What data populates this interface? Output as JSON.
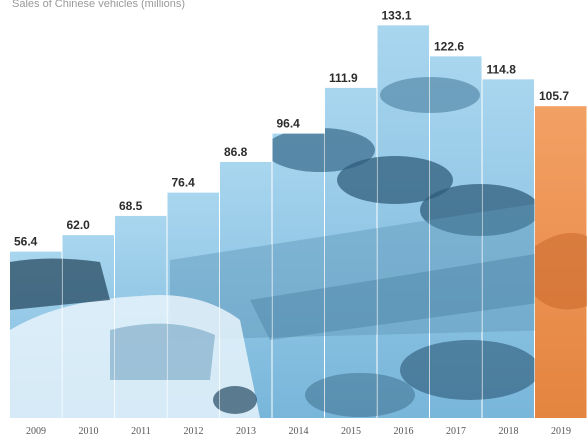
{
  "header": {
    "subtitle": "Sales of Chinese vehicles (millions)"
  },
  "colors": {
    "bar_blue": "#86c2e4",
    "bar_blue_light": "#b4dcf2",
    "bar_blue_dark": "#4f8fb5",
    "bar_orange": "#ee9150",
    "bar_orange_dark": "#c8682c",
    "label_text": "#2c2c2c"
  },
  "chart_data": {
    "type": "bar",
    "title": "",
    "xlabel": "",
    "ylabel": "",
    "categories": [
      "2009",
      "2010",
      "2011",
      "2012",
      "2013",
      "2014",
      "2015",
      "2016",
      "2017",
      "2018",
      "2019"
    ],
    "values": [
      56.4,
      62.0,
      68.5,
      76.4,
      86.8,
      96.4,
      111.9,
      133.1,
      122.6,
      114.8,
      105.7
    ],
    "value_labels": [
      "56.4",
      "62.0",
      "68.5",
      "76.4",
      "86.8",
      "96.4",
      "111.9",
      "133.1",
      "122.6",
      "114.8",
      "105.7"
    ],
    "highlight_category": "2019",
    "ylim": [
      0,
      140
    ],
    "grid": false,
    "legend": "none",
    "background": "photo of parked cars inside the bars"
  }
}
